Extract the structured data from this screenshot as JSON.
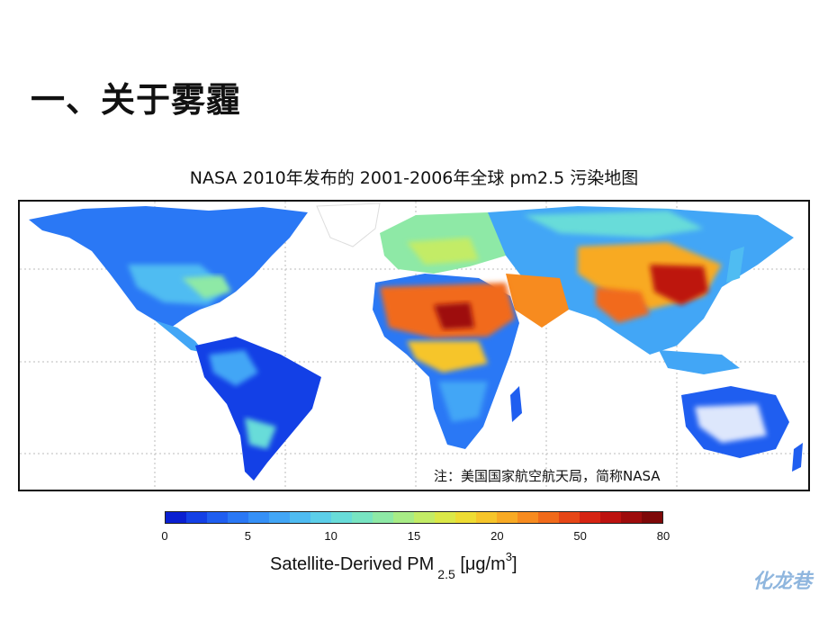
{
  "slide": {
    "title": "一、关于雾霾",
    "caption": "NASA 2010年发布的 2001-2006年全球 pm2.5 污染地图",
    "note": "注：美国国家航空航天局，简称NASA",
    "logo_text": "化龙巷"
  },
  "colorbar": {
    "tick_labels": [
      "0",
      "5",
      "10",
      "15",
      "20",
      "50",
      "80"
    ],
    "label_main": "Satellite-Derived PM",
    "label_sub": "2.5",
    "label_unit_open": "[μg/m",
    "label_unit_sup": "3",
    "label_unit_close": "]",
    "colors": [
      "#0a1fd1",
      "#1340e6",
      "#1f5ef0",
      "#2a78f5",
      "#3590f7",
      "#42a6f6",
      "#4fbcf2",
      "#5ccfe9",
      "#68dcd9",
      "#78e4c2",
      "#8ee9a6",
      "#a8ec86",
      "#c3ec66",
      "#dbe848",
      "#eedc33",
      "#f6c52a",
      "#f8aa24",
      "#f78b1f",
      "#f16a1a",
      "#e64616",
      "#d62412",
      "#bd120f",
      "#9e0c0c",
      "#7e0808"
    ]
  },
  "map": {
    "colors": {
      "ocean": "#ffffff",
      "low": "#1f5ef0",
      "mid_low": "#42a6f6",
      "mid": "#8ee9a6",
      "mid_high": "#f6c52a",
      "high": "#f16a1a",
      "very_high": "#9e0c0c"
    }
  }
}
